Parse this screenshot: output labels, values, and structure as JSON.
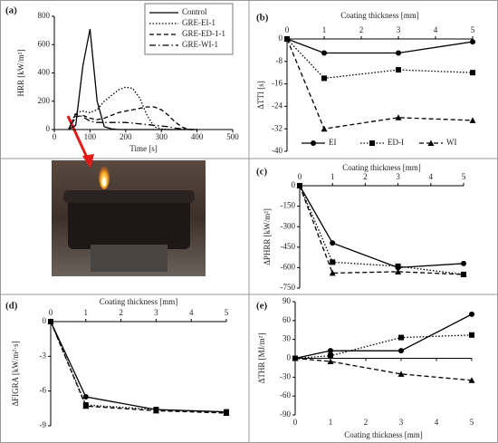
{
  "chart_data": [
    {
      "type": "line",
      "label": "(a)",
      "xlabel": "Time [s]",
      "ylabel": "HRR [kW/m²]",
      "x": [
        40,
        60,
        80,
        100,
        120,
        140,
        160,
        180,
        200,
        220,
        240,
        260,
        280,
        300,
        320,
        340,
        360,
        380,
        400
      ],
      "xlim": [
        0,
        500
      ],
      "xticks": [
        0,
        100,
        200,
        300,
        400,
        500
      ],
      "ylim": [
        0,
        800
      ],
      "yticks": [
        0,
        200,
        400,
        600,
        800
      ],
      "legend": "upper right",
      "series": [
        {
          "name": "Control",
          "color": "#000000",
          "line_style": "solid",
          "values": [
            0,
            30,
            450,
            710,
            200,
            20,
            5,
            0,
            0,
            0,
            0,
            0,
            0,
            0,
            0,
            0,
            0,
            0,
            0
          ]
        },
        {
          "name": "GRE-EI-1",
          "color": "#000000",
          "line_style": "dotted",
          "values": [
            0,
            120,
            130,
            120,
            140,
            200,
            240,
            280,
            300,
            290,
            220,
            100,
            20,
            5,
            0,
            0,
            0,
            0,
            0
          ]
        },
        {
          "name": "GRE-ED-1-1",
          "color": "#000000",
          "line_style": "dashed",
          "values": [
            0,
            90,
            100,
            80,
            70,
            80,
            100,
            120,
            130,
            140,
            150,
            160,
            160,
            140,
            100,
            50,
            15,
            0,
            0
          ]
        },
        {
          "name": "GRE-WI-1",
          "color": "#000000",
          "line_style": "dashdot",
          "values": [
            0,
            110,
            90,
            60,
            50,
            50,
            50,
            50,
            50,
            45,
            40,
            35,
            30,
            25,
            20,
            10,
            5,
            0,
            0
          ]
        }
      ]
    },
    {
      "type": "line",
      "label": "(b)",
      "xlabel": "Coating thickness [mm]",
      "ylabel": "ΔTTI [s]",
      "x": [
        0,
        1,
        3,
        5
      ],
      "xlim": [
        0,
        5
      ],
      "xticks": [
        0,
        1,
        2,
        3,
        4,
        5
      ],
      "ylim": [
        -40,
        0
      ],
      "yticks": [
        0,
        -8,
        -16,
        -24,
        -32,
        -40
      ],
      "legend": "bottom",
      "series": [
        {
          "name": "EI",
          "color": "#000000",
          "line_style": "solid",
          "marker": "circle",
          "values": [
            0,
            -5,
            -5,
            -1
          ]
        },
        {
          "name": "ED-I",
          "color": "#000000",
          "line_style": "dotted",
          "marker": "square",
          "values": [
            0,
            -14,
            -11,
            -12
          ]
        },
        {
          "name": "WI",
          "color": "#000000",
          "line_style": "dashed",
          "marker": "triangle",
          "values": [
            0,
            -32,
            -28,
            -29
          ]
        }
      ]
    },
    {
      "type": "line",
      "label": "(c)",
      "xlabel": "Coating thickness [mm]",
      "ylabel": "ΔPHRR [kW/m²]",
      "x": [
        0,
        1,
        3,
        5
      ],
      "xlim": [
        0,
        5
      ],
      "xticks": [
        0,
        1,
        2,
        3,
        4,
        5
      ],
      "ylim": [
        -750,
        0
      ],
      "yticks": [
        0,
        -150,
        -300,
        -450,
        -600,
        -750
      ],
      "series": [
        {
          "color": "#000000",
          "line_style": "solid",
          "marker": "circle",
          "values": [
            0,
            -420,
            -600,
            -570
          ]
        },
        {
          "color": "#000000",
          "line_style": "dotted",
          "marker": "square",
          "values": [
            0,
            -560,
            -590,
            -650
          ]
        },
        {
          "color": "#000000",
          "line_style": "dashed",
          "marker": "triangle",
          "values": [
            0,
            -640,
            -630,
            -650
          ]
        }
      ]
    },
    {
      "type": "line",
      "label": "(d)",
      "xlabel": "Coating thickness [mm]",
      "ylabel": "ΔFIGRA [kW/m²·s]",
      "x": [
        0,
        1,
        3,
        5
      ],
      "xlim": [
        0,
        5
      ],
      "xticks": [
        0,
        1,
        2,
        3,
        4,
        5
      ],
      "ylim": [
        -9,
        0
      ],
      "yticks": [
        0,
        -3,
        -6,
        -9
      ],
      "series": [
        {
          "color": "#000000",
          "line_style": "solid",
          "marker": "circle",
          "values": [
            0,
            -6.5,
            -7.6,
            -7.8
          ]
        },
        {
          "color": "#000000",
          "line_style": "dotted",
          "marker": "square",
          "values": [
            0,
            -7.2,
            -7.6,
            -7.8
          ]
        },
        {
          "color": "#000000",
          "line_style": "dashed",
          "marker": "triangle",
          "values": [
            0,
            -7.3,
            -7.7,
            -7.9
          ]
        }
      ]
    },
    {
      "type": "line",
      "label": "(e)",
      "xlabel": "Coating thickness [mm]",
      "ylabel": "ΔTHR [MJ/m²]",
      "x": [
        0,
        1,
        3,
        5
      ],
      "xlim": [
        0,
        5
      ],
      "xticks": [
        0,
        1,
        2,
        3,
        4,
        5
      ],
      "ylim": [
        -90,
        90
      ],
      "yticks": [
        90,
        60,
        30,
        0,
        -30,
        -60,
        -90
      ],
      "series": [
        {
          "color": "#000000",
          "line_style": "solid",
          "marker": "circle",
          "values": [
            0,
            12,
            12,
            70
          ]
        },
        {
          "color": "#000000",
          "line_style": "dotted",
          "marker": "square",
          "values": [
            0,
            4,
            33,
            37
          ]
        },
        {
          "color": "#000000",
          "line_style": "dashed",
          "marker": "triangle",
          "values": [
            0,
            -5,
            -25,
            -35
          ]
        }
      ]
    }
  ]
}
